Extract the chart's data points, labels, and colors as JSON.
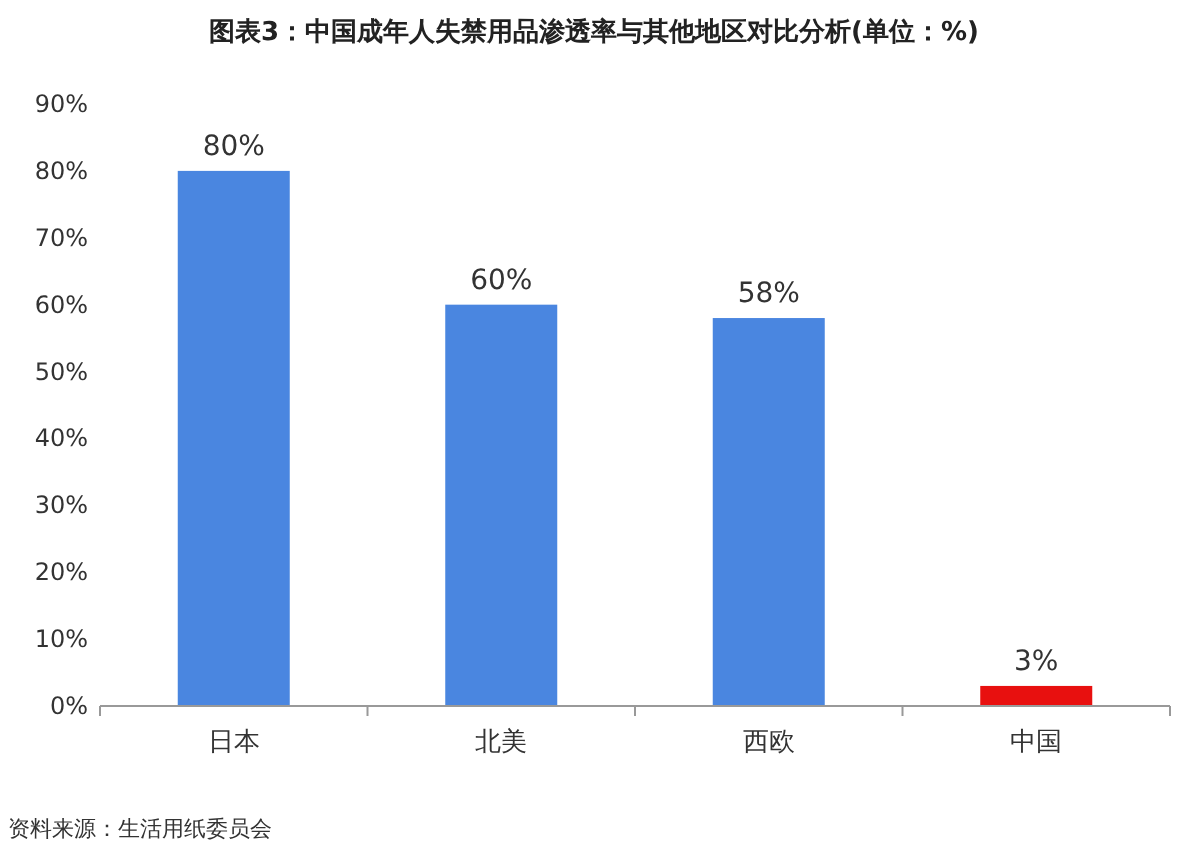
{
  "chart_data": {
    "type": "bar",
    "title": "图表3：中国成年人失禁用品渗透率与其他地区对比分析(单位：%)",
    "categories": [
      "日本",
      "北美",
      "西欧",
      "中国"
    ],
    "values": [
      80,
      60,
      58,
      3
    ],
    "colors": [
      "#4a86e0",
      "#4a86e0",
      "#4a86e0",
      "#e8100f"
    ],
    "value_labels": [
      "80%",
      "60%",
      "58%",
      "3%"
    ],
    "ylim": [
      0,
      90
    ],
    "yticks": [
      {
        "value": 0,
        "label": "0%"
      },
      {
        "value": 10,
        "label": "10%"
      },
      {
        "value": 20,
        "label": "20%"
      },
      {
        "value": 30,
        "label": "30%"
      },
      {
        "value": 40,
        "label": "40%"
      },
      {
        "value": 50,
        "label": "50%"
      },
      {
        "value": 60,
        "label": "60%"
      },
      {
        "value": 70,
        "label": "70%"
      },
      {
        "value": 80,
        "label": "80%"
      },
      {
        "value": 90,
        "label": "90%"
      }
    ],
    "grid": false,
    "annotations": [
      "资料来源：生活用纸委员会"
    ]
  }
}
